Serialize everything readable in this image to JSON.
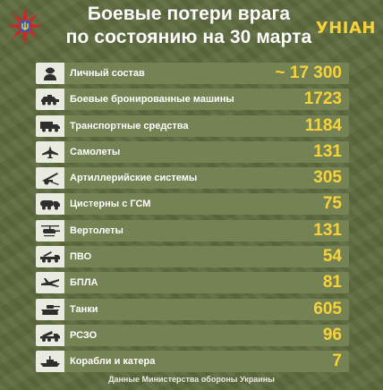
{
  "header": {
    "title_line1": "Боевые потери врага",
    "title_line2": "по состоянию на 30 марта",
    "brand": "УНIАН"
  },
  "colors": {
    "background": "#5e6b3e",
    "row": "#758354",
    "icon_bg": "#e9ebe0",
    "value": "#f6d23a"
  },
  "rows": [
    {
      "label": "Личный состав",
      "value": "~ 17 300",
      "icon": "soldier-icon"
    },
    {
      "label": "Боевые бронированные машины",
      "value": "1723",
      "icon": "armored-vehicle-icon"
    },
    {
      "label": "Транспортные средства",
      "value": "1184",
      "icon": "truck-icon"
    },
    {
      "label": "Самолеты",
      "value": "131",
      "icon": "jet-icon"
    },
    {
      "label": "Артиллерийские системы",
      "value": "305",
      "icon": "artillery-icon"
    },
    {
      "label": "Цистерны с ГСМ",
      "value": "75",
      "icon": "fuel-tanker-icon"
    },
    {
      "label": "Вертолеты",
      "value": "131",
      "icon": "helicopter-icon"
    },
    {
      "label": "ПВО",
      "value": "54",
      "icon": "air-defense-icon"
    },
    {
      "label": "БПЛА",
      "value": "81",
      "icon": "drone-icon"
    },
    {
      "label": "Танки",
      "value": "605",
      "icon": "tank-icon"
    },
    {
      "label": "РСЗО",
      "value": "96",
      "icon": "rocket-launcher-icon"
    },
    {
      "label": "Корабли и катера",
      "value": "7",
      "icon": "ship-icon"
    }
  ],
  "footer": "Данные Министерства обороны Украины"
}
